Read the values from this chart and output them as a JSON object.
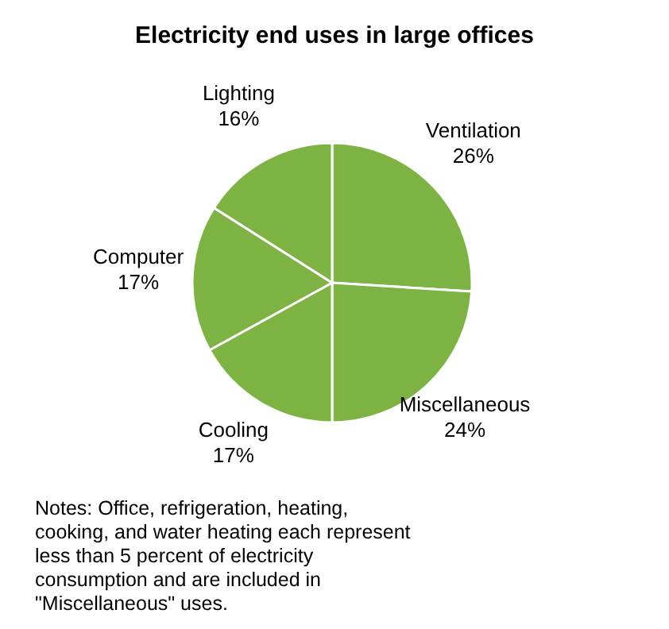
{
  "chart_data": {
    "type": "pie",
    "title": "Electricity end uses in large offices",
    "categories": [
      "Ventilation",
      "Miscellaneous",
      "Cooling",
      "Computer",
      "Lighting"
    ],
    "values": [
      26,
      24,
      17,
      17,
      16
    ],
    "value_labels": [
      "26%",
      "24%",
      "17%",
      "17%",
      "16%"
    ],
    "colors": [
      "#7cb342",
      "#7cb342",
      "#7cb342",
      "#7cb342",
      "#7cb342"
    ],
    "legend": false,
    "annotations": [
      "Notes: Office, refrigeration, heating, cooking, and water heating each represent less than 5 percent of electricity consumption and are included in \"Miscellaneous\" uses."
    ]
  }
}
